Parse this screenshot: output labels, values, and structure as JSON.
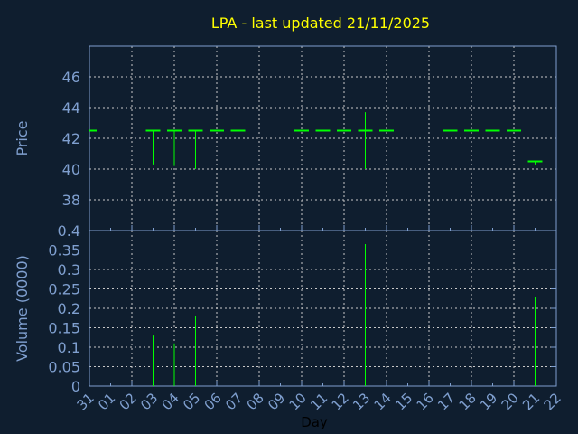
{
  "chart_data": [
    {
      "type": "candlestick",
      "title": "LPA - last updated 21/11/2025",
      "ylabel": "Price",
      "ylim": [
        36,
        48
      ],
      "yticks": [
        38,
        40,
        42,
        44,
        46
      ],
      "grid": true,
      "x_labels": [
        "31",
        "01",
        "02",
        "03",
        "04",
        "05",
        "06",
        "07",
        "08",
        "09",
        "10",
        "11",
        "12",
        "13",
        "14",
        "15",
        "16",
        "17",
        "18",
        "19",
        "20",
        "21",
        "22"
      ],
      "candles": [
        {
          "day": "31",
          "open": 42.5,
          "high": 42.5,
          "low": 42.5,
          "close": 42.5
        },
        {
          "day": "03",
          "open": 42.5,
          "high": 42.5,
          "low": 40.3,
          "close": 42.5
        },
        {
          "day": "04",
          "open": 42.5,
          "high": 42.5,
          "low": 40.2,
          "close": 42.5
        },
        {
          "day": "05",
          "open": 42.5,
          "high": 42.5,
          "low": 40.0,
          "close": 42.5
        },
        {
          "day": "06",
          "open": 42.5,
          "high": 42.5,
          "low": 42.5,
          "close": 42.5
        },
        {
          "day": "07",
          "open": 42.5,
          "high": 42.5,
          "low": 42.5,
          "close": 42.5
        },
        {
          "day": "10",
          "open": 42.5,
          "high": 42.5,
          "low": 42.5,
          "close": 42.5
        },
        {
          "day": "11",
          "open": 42.5,
          "high": 42.5,
          "low": 42.5,
          "close": 42.5
        },
        {
          "day": "12",
          "open": 42.5,
          "high": 42.5,
          "low": 42.5,
          "close": 42.5
        },
        {
          "day": "13",
          "open": 42.5,
          "high": 43.7,
          "low": 40.0,
          "close": 42.5
        },
        {
          "day": "14",
          "open": 42.5,
          "high": 42.5,
          "low": 42.5,
          "close": 42.5
        },
        {
          "day": "17",
          "open": 42.5,
          "high": 42.5,
          "low": 42.5,
          "close": 42.5
        },
        {
          "day": "18",
          "open": 42.5,
          "high": 42.5,
          "low": 42.5,
          "close": 42.5
        },
        {
          "day": "19",
          "open": 42.5,
          "high": 42.5,
          "low": 42.5,
          "close": 42.5
        },
        {
          "day": "20",
          "open": 42.5,
          "high": 42.5,
          "low": 42.5,
          "close": 42.5
        },
        {
          "day": "21",
          "open": 40.5,
          "high": 40.5,
          "low": 40.3,
          "close": 40.5
        }
      ]
    },
    {
      "type": "bar",
      "ylabel": "Volume (0000)",
      "xlabel": "Day",
      "ylim": [
        0,
        0.4
      ],
      "yticks": [
        "0",
        "0.05",
        "0.1",
        "0.15",
        "0.2",
        "0.25",
        "0.3",
        "0.35",
        "0.4"
      ],
      "grid": true,
      "bars": [
        {
          "day": "03",
          "value": 0.13
        },
        {
          "day": "04",
          "value": 0.11
        },
        {
          "day": "05",
          "value": 0.18
        },
        {
          "day": "13",
          "value": 0.365
        },
        {
          "day": "21",
          "value": 0.23
        }
      ]
    }
  ],
  "colors": {
    "background": "#0f1e2f",
    "title": "#ffff00",
    "axis": "#7f9fcf",
    "grid": "#c8c8c8",
    "series": "#00ff00",
    "xlabel": "#000000"
  }
}
